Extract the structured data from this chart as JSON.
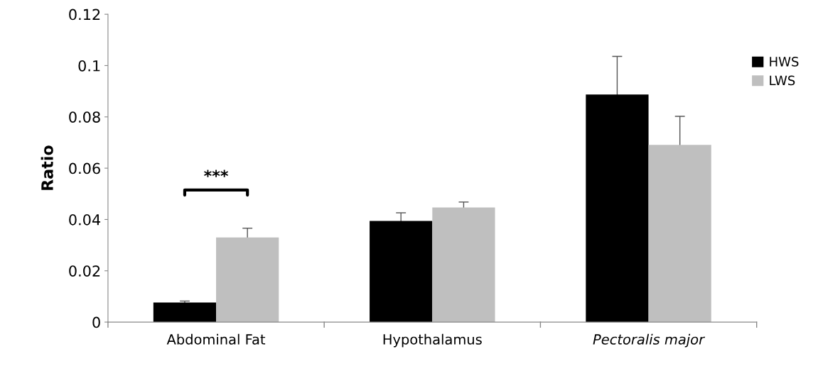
{
  "chart_data": {
    "type": "bar",
    "ylabel": "Ratio",
    "categories": [
      "Abdominal Fat",
      "Hypothalamus",
      "Pectoralis major"
    ],
    "series": [
      {
        "name": "HWS",
        "color": "#000000",
        "values": [
          0.0076,
          0.0394,
          0.0887
        ],
        "errors": [
          0.0006,
          0.0032,
          0.0149
        ]
      },
      {
        "name": "LWS",
        "color": "#bfbfbf",
        "values": [
          0.033,
          0.0447,
          0.0691
        ],
        "errors": [
          0.0036,
          0.0021,
          0.0111
        ]
      }
    ],
    "ylim": [
      0,
      0.12
    ],
    "yticks": [
      0,
      0.02,
      0.04,
      0.06,
      0.08,
      0.1,
      0.12
    ],
    "annotations": [
      "***"
    ],
    "grid": false,
    "legend": "right"
  }
}
